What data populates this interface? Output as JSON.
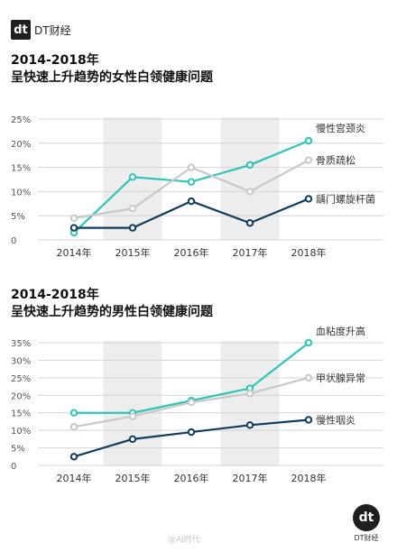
{
  "header": {
    "logo_text": "dt",
    "brand": "DT财经"
  },
  "chart_data": [
    {
      "type": "line",
      "title": "2014-2018年",
      "subtitle": "呈快速上升趋势的女性白领健康问题",
      "categories": [
        "2014年",
        "2015年",
        "2016年",
        "2017年",
        "2018年"
      ],
      "ylim": [
        0,
        25
      ],
      "yticks": [
        "0",
        "5%",
        "10%",
        "15%",
        "20%",
        "25%"
      ],
      "ytick_values": [
        0,
        5,
        10,
        15,
        20,
        25
      ],
      "shaded_categories": [
        1,
        3
      ],
      "series": [
        {
          "name": "慢性宫颈炎",
          "values": [
            1.5,
            13.0,
            12.0,
            15.5,
            20.5
          ],
          "color": "#2ec4b6"
        },
        {
          "name": "骨质疏松",
          "values": [
            4.5,
            6.5,
            15.0,
            10.0,
            16.5
          ],
          "color": "#c8c8c8"
        },
        {
          "name": "龋门螺旋杆菌",
          "values": [
            2.5,
            2.5,
            8.0,
            3.5,
            8.5
          ],
          "color": "#123c5c"
        }
      ]
    },
    {
      "type": "line",
      "title": "2014-2018年",
      "subtitle": "呈快速上升趋势的男性白领健康问题",
      "categories": [
        "2014年",
        "2015年",
        "2016年",
        "2017年",
        "2018年"
      ],
      "ylim": [
        0,
        35
      ],
      "yticks": [
        "0",
        "5%",
        "10%",
        "15%",
        "20%",
        "25%",
        "30%",
        "35%"
      ],
      "ytick_values": [
        0,
        5,
        10,
        15,
        20,
        25,
        30,
        35
      ],
      "shaded_categories": [
        1,
        3
      ],
      "series": [
        {
          "name": "血粘度升高",
          "values": [
            15.0,
            15.0,
            18.5,
            22.0,
            35.0
          ],
          "color": "#2ec4b6"
        },
        {
          "name": "甲状腺异常",
          "values": [
            11.0,
            14.0,
            18.0,
            20.5,
            25.0
          ],
          "color": "#c8c8c8"
        },
        {
          "name": "慢性咽炎",
          "values": [
            2.5,
            7.5,
            9.5,
            11.5,
            13.0
          ],
          "color": "#123c5c"
        }
      ]
    }
  ],
  "footer": {
    "logo_text": "dt",
    "caption": "DT财经"
  },
  "watermark": "@AI时代"
}
